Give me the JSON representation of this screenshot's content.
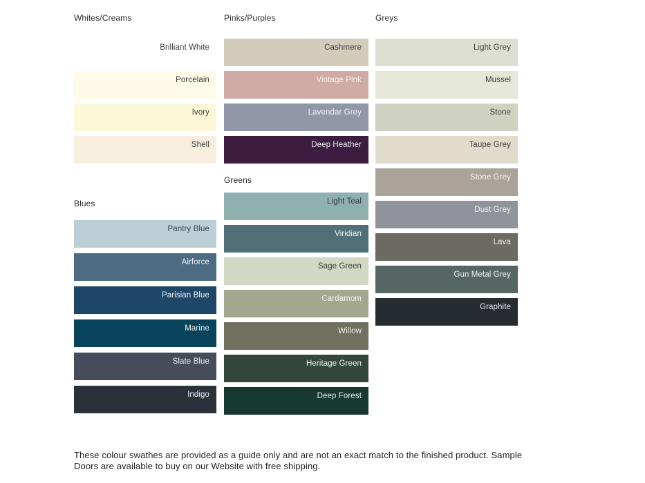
{
  "page_background": "#ffffff",
  "text": {
    "footer": "These colour swathes are provided as a guide only and are not an exact match to the finished product.  Sample Doors are available to buy on our Website with free shipping."
  },
  "palette": {
    "columns": [
      {
        "groups": [
          {
            "title": "Whites/Creams",
            "swatches": [
              {
                "name": "Brilliant White",
                "bg": "#ffffff",
                "fg": "#3b3b3b"
              },
              {
                "name": "Porcelain",
                "bg": "#fffbe8",
                "fg": "#3b3b3b"
              },
              {
                "name": "Ivory",
                "bg": "#fdf6d7",
                "fg": "#3b3b3b"
              },
              {
                "name": "Shell",
                "bg": "#f7eedf",
                "fg": "#3b3b3b"
              }
            ]
          },
          {
            "title": "Blues",
            "swatches": [
              {
                "name": "Pantry Blue",
                "bg": "#bccfd6",
                "fg": "#39434b"
              },
              {
                "name": "Airforce",
                "bg": "#4e6b84",
                "fg": "#f2f4f6"
              },
              {
                "name": "Parisian Blue",
                "bg": "#1d4669",
                "fg": "#f2f4f6"
              },
              {
                "name": "Marine",
                "bg": "#07435a",
                "fg": "#f2f4f6"
              },
              {
                "name": "Slate Blue",
                "bg": "#444d59",
                "fg": "#eef0f2"
              },
              {
                "name": "Indigo",
                "bg": "#2a313b",
                "fg": "#eef0f2"
              }
            ]
          }
        ]
      },
      {
        "groups": [
          {
            "title": "Pinks/Purples",
            "swatches": [
              {
                "name": "Cashmere",
                "bg": "#d2ccba",
                "fg": "#3b3b3b"
              },
              {
                "name": "Vintage Pink",
                "bg": "#d0aba5",
                "fg": "#f7f2f1"
              },
              {
                "name": "Lavendar Grey",
                "bg": "#9097a8",
                "fg": "#f3f4f6"
              },
              {
                "name": "Deep Heather",
                "bg": "#3c1d40",
                "fg": "#f1ecf2"
              }
            ]
          },
          {
            "title": "Greens",
            "swatches": [
              {
                "name": "Light Teal",
                "bg": "#8fb0ae",
                "fg": "#2f3b3a"
              },
              {
                "name": "Viridian",
                "bg": "#516f77",
                "fg": "#f0f4f5"
              },
              {
                "name": "Sage Green",
                "bg": "#d2d8c3",
                "fg": "#3b3b3b"
              },
              {
                "name": "Cardamom",
                "bg": "#a3a78e",
                "fg": "#f5f6f1"
              },
              {
                "name": "Willow",
                "bg": "#716f5e",
                "fg": "#f3f3ef"
              },
              {
                "name": "Heritage Green",
                "bg": "#34473c",
                "fg": "#eff3f0"
              },
              {
                "name": "Deep Forest",
                "bg": "#17392f",
                "fg": "#eef3f1"
              }
            ]
          }
        ]
      },
      {
        "groups": [
          {
            "title": "Greys",
            "swatches": [
              {
                "name": "Light Grey",
                "bg": "#dedfd3",
                "fg": "#3b3b3b"
              },
              {
                "name": "Mussel",
                "bg": "#e5e7d8",
                "fg": "#3b3b3b"
              },
              {
                "name": "Stone",
                "bg": "#d0d2c1",
                "fg": "#3b3b3b"
              },
              {
                "name": "Taupe Grey",
                "bg": "#e1dbcb",
                "fg": "#3b3b3b"
              },
              {
                "name": "Stone Grey",
                "bg": "#a9a399",
                "fg": "#f6f5f3"
              },
              {
                "name": "Dust Grey",
                "bg": "#90939a",
                "fg": "#f3f4f5"
              },
              {
                "name": "Lava",
                "bg": "#6c6b61",
                "fg": "#f3f3f0"
              },
              {
                "name": "Gun Metal Grey",
                "bg": "#566662",
                "fg": "#eff3f2"
              },
              {
                "name": "Graphite",
                "bg": "#272c31",
                "fg": "#eef0f1"
              }
            ]
          }
        ]
      }
    ]
  }
}
